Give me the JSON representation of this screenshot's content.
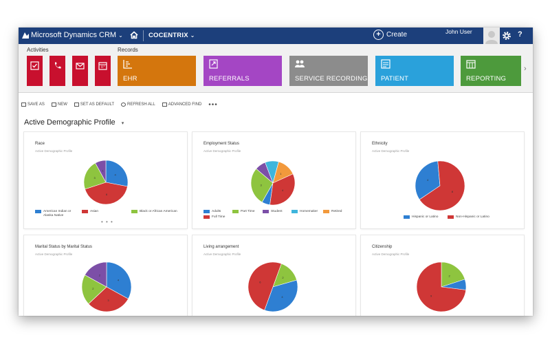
{
  "nav": {
    "app_title": "Microsoft Dynamics CRM",
    "org": "COCENTRIX",
    "create_label": "Create",
    "user_name": "John User",
    "help_label": "?",
    "icons": {
      "logo": "dynamics-logo-icon",
      "home": "home-icon",
      "gear": "gear-icon",
      "chevron": "chevron-down-icon"
    },
    "chevron": "⌄"
  },
  "ribbon": {
    "activities_label": "Activities",
    "records_label": "Records",
    "activities": [
      {
        "name": "task",
        "icon": "task-icon",
        "color": "#c8102e"
      },
      {
        "name": "phone-call",
        "icon": "phone-icon",
        "color": "#c8102e"
      },
      {
        "name": "email",
        "icon": "email-icon",
        "color": "#c8102e"
      },
      {
        "name": "appointment",
        "icon": "calendar-icon",
        "color": "#c8102e"
      }
    ],
    "tiles": [
      {
        "label": "EHR",
        "icon": "ehr-icon",
        "color": "#d4760d"
      },
      {
        "label": "REFERRALS",
        "icon": "referral-icon",
        "color": "#a446c4"
      },
      {
        "label": "SERVICE RECORDING",
        "icon": "service-recording-icon",
        "color": "#8c8c8c"
      },
      {
        "label": "PATIENT",
        "icon": "patient-icon",
        "color": "#2aa1db"
      },
      {
        "label": "REPORTING",
        "icon": "reporting-icon",
        "color": "#4d9a3c"
      }
    ],
    "more": "›"
  },
  "commands": [
    {
      "label": "SAVE AS",
      "icon": "save-icon"
    },
    {
      "label": "NEW",
      "icon": "new-icon"
    },
    {
      "label": "SET AS DEFAULT",
      "icon": "set-default-icon"
    },
    {
      "label": "REFRESH ALL",
      "icon": "refresh-icon"
    },
    {
      "label": "ADVANCED FIND",
      "icon": "advanced-find-icon"
    }
  ],
  "more_commands": "•••",
  "dashboard": {
    "title": "Active Demographic Profile",
    "dropdown": "▾"
  },
  "colors": {
    "blue": "#2e7fd2",
    "red": "#cf3736",
    "green": "#8ec43f",
    "purple": "#7c4fa7",
    "cyan": "#3eb5dc",
    "orange": "#f2993c"
  },
  "pager": "• • •",
  "chart_data": [
    {
      "type": "pie",
      "title": "Race",
      "subtitle": "Active Demographic Profile",
      "series": [
        {
          "name": "American Indian or Alaska Native",
          "value": 28,
          "color": "#2e7fd2"
        },
        {
          "name": "Asian",
          "value": 42,
          "color": "#cf3736"
        },
        {
          "name": "Black or African American",
          "value": 22,
          "color": "#8ec43f"
        },
        {
          "name": "",
          "value": 8,
          "color": "#7c4fa7"
        }
      ],
      "slice_labels": [
        "4",
        "6",
        "3",
        "1"
      ]
    },
    {
      "type": "pie",
      "title": "Employment Status",
      "subtitle": "Active Demographic Profile",
      "series": [
        {
          "name": "Adults",
          "value": 6,
          "color": "#2e7fd2"
        },
        {
          "name": "Part Time",
          "value": 28,
          "color": "#8ec43f"
        },
        {
          "name": "Student",
          "value": 8,
          "color": "#7c4fa7"
        },
        {
          "name": "Homemaker",
          "value": 10,
          "color": "#3eb5dc"
        },
        {
          "name": "Retired",
          "value": 14,
          "color": "#f2993c"
        },
        {
          "name": "Full Time",
          "value": 34,
          "color": "#cf3736"
        }
      ],
      "slice_labels": [
        "",
        "3",
        "",
        "",
        "1",
        "4"
      ]
    },
    {
      "type": "pie",
      "title": "Ethnicity",
      "subtitle": "Active Demographic Profile",
      "series": [
        {
          "name": "Hispanic or Latino",
          "value": 33,
          "color": "#2e7fd2"
        },
        {
          "name": "Non-Hispanic or Latino",
          "value": 67,
          "color": "#cf3736"
        }
      ],
      "slice_labels": [
        "4",
        "8"
      ]
    },
    {
      "type": "pie",
      "title": "Marital Status by Marital Status",
      "subtitle": "Active Demographic Profile",
      "series": [
        {
          "name": "",
          "value": 33,
          "color": "#2e7fd2"
        },
        {
          "name": "",
          "value": 30,
          "color": "#cf3736"
        },
        {
          "name": "",
          "value": 20,
          "color": "#8ec43f"
        },
        {
          "name": "",
          "value": 17,
          "color": "#7c4fa7"
        }
      ],
      "slice_labels": [
        "4",
        "3",
        "2",
        "2"
      ]
    },
    {
      "type": "pie",
      "title": "Living arrangement",
      "subtitle": "Active Demographic Profile",
      "series": [
        {
          "name": "",
          "value": 15,
          "color": "#8ec43f"
        },
        {
          "name": "",
          "value": 35,
          "color": "#2e7fd2"
        },
        {
          "name": "",
          "value": 50,
          "color": "#cf3736"
        }
      ],
      "slice_labels": [
        "2",
        "4",
        "6"
      ]
    },
    {
      "type": "pie",
      "title": "Citizenship",
      "subtitle": "Active Demographic Profile",
      "series": [
        {
          "name": "",
          "value": 20,
          "color": "#8ec43f"
        },
        {
          "name": "",
          "value": 7,
          "color": "#2e7fd2"
        },
        {
          "name": "",
          "value": 73,
          "color": "#cf3736"
        }
      ],
      "slice_labels": [
        "2",
        "",
        "9"
      ]
    }
  ]
}
